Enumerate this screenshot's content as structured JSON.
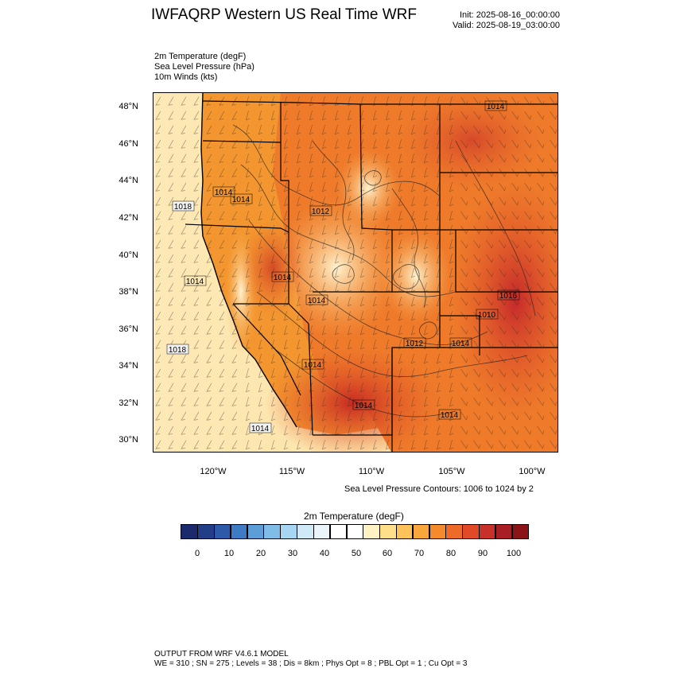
{
  "header": {
    "title": "IWFAQRP Western US Real Time WRF",
    "init": "Init: 2025-08-16_00:00:00",
    "valid": "Valid: 2025-08-19_03:00:00"
  },
  "fields": [
    "2m Temperature   (degF)",
    "Sea Level Pressure   (hPa)",
    "10m Winds   (kts)"
  ],
  "map": {
    "lat_ticks": [
      "48°N",
      "46°N",
      "44°N",
      "42°N",
      "40°N",
      "38°N",
      "36°N",
      "34°N",
      "32°N",
      "30°N"
    ],
    "lon_ticks": [
      "120°W",
      "115°W",
      "110°W",
      "105°W",
      "100°W"
    ],
    "slp_labels": [
      "1014",
      "1014",
      "1018",
      "1014",
      "1014",
      "1018",
      "1014",
      "1014",
      "1014",
      "1016",
      "1010",
      "1014",
      "1012",
      "1014",
      "1014",
      "1014",
      "1012"
    ],
    "slp_note": "Sea Level Pressure Contours: 1006 to 1024 by 2"
  },
  "colorbar": {
    "title": "2m Temperature  (degF)",
    "ticks": [
      "0",
      "10",
      "20",
      "30",
      "40",
      "50",
      "60",
      "70",
      "80",
      "90",
      "100"
    ],
    "colors": [
      "#1a2a6c",
      "#233e88",
      "#2c5aa8",
      "#3d7cc4",
      "#5b9ed8",
      "#7fbde8",
      "#a7d6f2",
      "#cfe9f7",
      "#eaf5fb",
      "#ffffff",
      "#ffffff",
      "#fff3c4",
      "#ffe08a",
      "#fdc35a",
      "#f9a63c",
      "#f58a2c",
      "#ee6a28",
      "#e04a26",
      "#c8302a",
      "#a81e24",
      "#8a1418"
    ]
  },
  "footer": {
    "line1": "OUTPUT FROM WRF V4.6.1 MODEL",
    "line2": "WE = 310 ; SN = 275 ; Levels = 38 ; Dis = 8km ; Phys Opt = 8 ; PBL Opt = 1 ; Cu Opt = 3"
  }
}
